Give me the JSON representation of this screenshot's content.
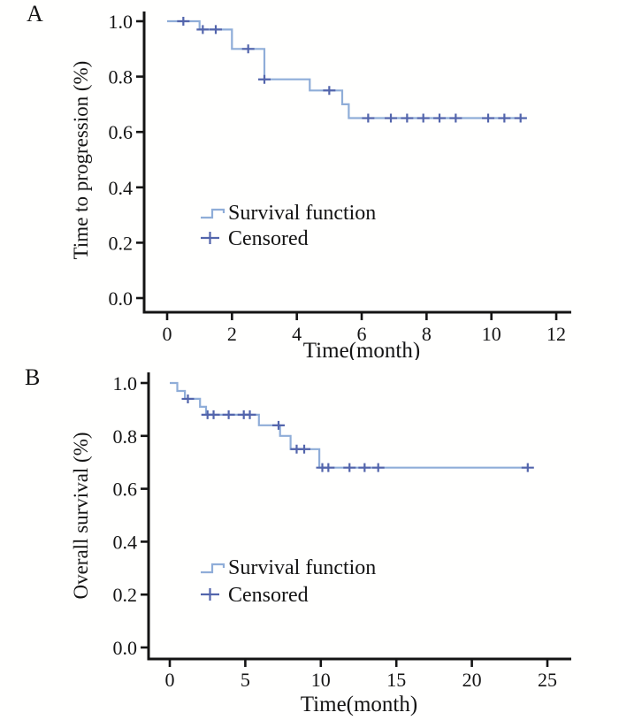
{
  "colors": {
    "background": "#fffffe",
    "curve_line": "#8fadd8",
    "censor_mark": "#5365ac",
    "axis_and_text": "#141414"
  },
  "chart_data": [
    {
      "type": "line",
      "subtype": "kaplan-meier-step",
      "panel_label": "A",
      "ylabel": "Time to progression (%)",
      "xlabel": "Time(month)",
      "xticks": [
        0,
        2,
        4,
        6,
        8,
        10,
        12
      ],
      "ytick_labels": [
        "0.0",
        "0.2",
        "0.4",
        "0.6",
        "0.8",
        "1.0"
      ],
      "xlim": [
        0,
        12.4
      ],
      "ylim": [
        0,
        1.05
      ],
      "grid": false,
      "legend_position": "center-left-inside",
      "legend": [
        "Survival function",
        "Censored"
      ],
      "series": [
        {
          "name": "Survival function",
          "steps": [
            [
              0,
              1.0
            ],
            [
              1.0,
              0.97
            ],
            [
              2.0,
              0.9
            ],
            [
              3.0,
              0.79
            ],
            [
              4.4,
              0.75
            ],
            [
              5.4,
              0.7
            ],
            [
              5.6,
              0.65
            ]
          ],
          "end_x": 11.1
        }
      ],
      "censored": [
        [
          0.5,
          1.0
        ],
        [
          1.1,
          0.97
        ],
        [
          1.5,
          0.97
        ],
        [
          2.5,
          0.9
        ],
        [
          3.0,
          0.79
        ],
        [
          5.0,
          0.75
        ],
        [
          6.2,
          0.65
        ],
        [
          6.9,
          0.65
        ],
        [
          7.4,
          0.65
        ],
        [
          7.9,
          0.65
        ],
        [
          8.4,
          0.65
        ],
        [
          8.9,
          0.65
        ],
        [
          9.9,
          0.65
        ],
        [
          10.4,
          0.65
        ],
        [
          10.9,
          0.65
        ]
      ]
    },
    {
      "type": "line",
      "subtype": "kaplan-meier-step",
      "panel_label": "B",
      "ylabel": "Overall survival (%)",
      "xlabel": "Time(month)",
      "xticks": [
        0,
        5,
        10,
        15,
        20,
        25
      ],
      "ytick_labels": [
        "0.0",
        "0.2",
        "0.4",
        "0.6",
        "0.8",
        "1.0"
      ],
      "xlim": [
        0,
        26.5
      ],
      "ylim": [
        0,
        1.05
      ],
      "grid": false,
      "legend_position": "center-left-inside",
      "legend": [
        "Survival function",
        "Censored"
      ],
      "series": [
        {
          "name": "Survival function",
          "steps": [
            [
              0,
              1.0
            ],
            [
              0.5,
              0.97
            ],
            [
              1.0,
              0.94
            ],
            [
              2.0,
              0.91
            ],
            [
              2.4,
              0.88
            ],
            [
              5.9,
              0.84
            ],
            [
              7.3,
              0.8
            ],
            [
              8.0,
              0.75
            ],
            [
              9.9,
              0.68
            ]
          ],
          "end_x": 23.7
        }
      ],
      "censored": [
        [
          1.2,
          0.94
        ],
        [
          2.5,
          0.88
        ],
        [
          2.9,
          0.88
        ],
        [
          3.9,
          0.88
        ],
        [
          4.9,
          0.88
        ],
        [
          5.3,
          0.88
        ],
        [
          7.2,
          0.84
        ],
        [
          8.4,
          0.75
        ],
        [
          8.9,
          0.75
        ],
        [
          10.1,
          0.68
        ],
        [
          10.5,
          0.68
        ],
        [
          11.9,
          0.68
        ],
        [
          12.9,
          0.68
        ],
        [
          13.8,
          0.68
        ],
        [
          23.7,
          0.68
        ]
      ]
    }
  ]
}
